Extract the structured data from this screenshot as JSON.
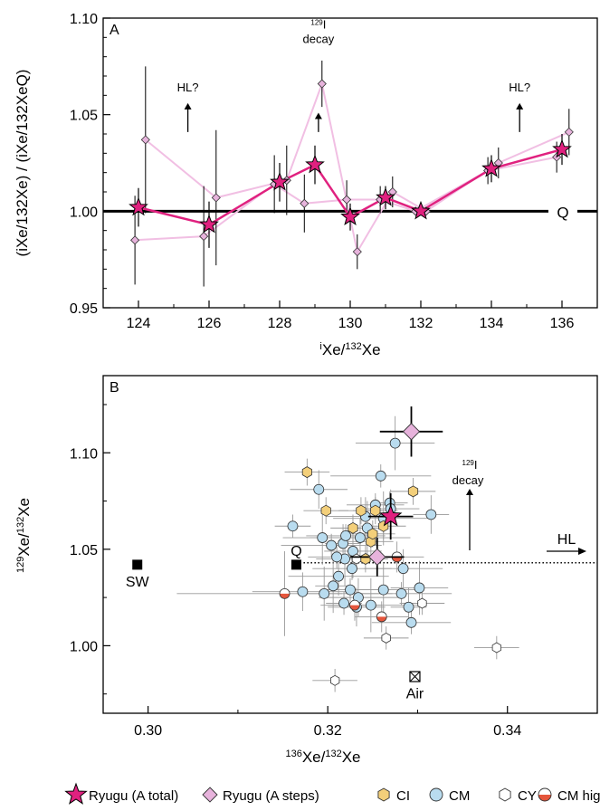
{
  "colors": {
    "ryugu_total": "#e0217f",
    "ryugu_steps_fill": "#e7b3dc",
    "ryugu_steps_line": "#f1bfe3",
    "ci": "#f3cf7a",
    "cm": "#b9dcef",
    "cy": "#ffffff",
    "cmht_top": "#ffffff",
    "cmht_bottom": "#e5563c",
    "error_gray": "#9a9a9a"
  },
  "chart_data": [
    {
      "panel": "A",
      "type": "line",
      "xlabel_pre": "i",
      "xlabel_main": "Xe/",
      "xlabel_sup": "132",
      "xlabel_post": "Xe",
      "ylabel_text": "(iXe/132Xe) / (iXe/132XeQ)",
      "xlim": [
        123,
        137
      ],
      "ylim": [
        0.95,
        1.1
      ],
      "xticks": [
        124,
        126,
        128,
        130,
        132,
        134,
        136
      ],
      "yticks": [
        0.95,
        1.0,
        1.05,
        1.1
      ],
      "ytick_labels": [
        "0.95",
        "1.00",
        "1.05",
        "1.10"
      ],
      "reference_line": {
        "y": 1.0,
        "label": "Q"
      },
      "series": [
        {
          "name": "Ryugu (A total)",
          "marker": "star",
          "points": [
            {
              "x": 124,
              "y": 1.002,
              "err": 0.01
            },
            {
              "x": 126,
              "y": 0.993,
              "err": 0.012
            },
            {
              "x": 128,
              "y": 1.015,
              "err": 0.01
            },
            {
              "x": 129,
              "y": 1.024,
              "err": 0.01
            },
            {
              "x": 130,
              "y": 0.997,
              "err": 0.007
            },
            {
              "x": 131,
              "y": 1.007,
              "err": 0.006
            },
            {
              "x": 132,
              "y": 1.0,
              "err": 0.002
            },
            {
              "x": 134,
              "y": 1.022,
              "err": 0.007
            },
            {
              "x": 136,
              "y": 1.032,
              "err": 0.008
            }
          ]
        },
        {
          "name": "Ryugu (A steps) step 1",
          "marker": "diamond",
          "points": [
            {
              "x": 123.9,
              "y": 0.985,
              "err": 0.023
            },
            {
              "x": 125.85,
              "y": 0.987,
              "err": 0.026
            },
            {
              "x": 127.85,
              "y": 1.014,
              "err": 0.015
            },
            {
              "x": 128.7,
              "y": 1.004,
              "err": 0.015
            },
            {
              "x": 129.9,
              "y": 1.006,
              "err": 0.01
            },
            {
              "x": 130.85,
              "y": 1.006,
              "err": 0.007
            },
            {
              "x": 131.85,
              "y": 1.0,
              "err": 0.002
            },
            {
              "x": 133.9,
              "y": 1.021,
              "err": 0.007
            },
            {
              "x": 135.85,
              "y": 1.028,
              "err": 0.008
            }
          ]
        },
        {
          "name": "Ryugu (A steps) step 2",
          "marker": "diamond",
          "points": [
            {
              "x": 124.2,
              "y": 1.037,
              "err": 0.038
            },
            {
              "x": 126.2,
              "y": 1.007,
              "err": 0.035
            },
            {
              "x": 128.2,
              "y": 1.016,
              "err": 0.018
            },
            {
              "x": 129.2,
              "y": 1.066,
              "err": 0.012
            },
            {
              "x": 130.2,
              "y": 0.979,
              "err": 0.009
            },
            {
              "x": 131.2,
              "y": 1.01,
              "err": 0.008
            },
            {
              "x": 132.15,
              "y": 1.0,
              "err": 0.002
            },
            {
              "x": 134.2,
              "y": 1.025,
              "err": 0.008
            },
            {
              "x": 136.2,
              "y": 1.041,
              "err": 0.012
            }
          ]
        }
      ],
      "annotations": [
        {
          "text": "HL?",
          "x": 125.4,
          "y": 1.062,
          "arrow": [
            1.041,
            1.056
          ]
        },
        {
          "text_pre": "129",
          "text": "I",
          "subtext": "decay",
          "x": 129.1,
          "y": 1.087,
          "arrow": [
            1.041,
            1.051
          ]
        },
        {
          "text": "HL?",
          "x": 134.8,
          "y": 1.062,
          "arrow": [
            1.041,
            1.056
          ]
        }
      ]
    },
    {
      "panel": "B",
      "type": "scatter",
      "xlabel_sup": "136",
      "xlabel_main": "Xe/",
      "xlabel_sup2": "132",
      "xlabel_post": "Xe",
      "ylabel_sup": "129",
      "ylabel_main": "Xe/",
      "ylabel_sup2": "132",
      "ylabel_post": "Xe",
      "xlim": [
        0.295,
        0.35
      ],
      "ylim": [
        0.965,
        1.14
      ],
      "xticks": [
        0.3,
        0.32,
        0.34
      ],
      "xtick_labels": [
        "0.30",
        "0.32",
        "0.34"
      ],
      "xminor": [
        0.31,
        0.33
      ],
      "yticks": [
        1.0,
        1.05,
        1.1
      ],
      "ytick_labels": [
        "1.00",
        "1.05",
        "1.10"
      ],
      "ryugu_total": {
        "x": 0.327,
        "y": 1.067,
        "ex": 0.0025,
        "ey": 0.012
      },
      "ryugu_steps": [
        {
          "x": 0.3293,
          "y": 1.111,
          "ex": 0.0035,
          "ey": 0.013
        },
        {
          "x": 0.3255,
          "y": 1.046,
          "ex": 0.003,
          "ey": 0.01
        }
      ],
      "ci": [
        {
          "x": 0.3177,
          "y": 1.09
        },
        {
          "x": 0.3228,
          "y": 1.061
        },
        {
          "x": 0.3237,
          "y": 1.07
        },
        {
          "x": 0.3253,
          "y": 1.07
        },
        {
          "x": 0.3262,
          "y": 1.062
        },
        {
          "x": 0.3248,
          "y": 1.054
        },
        {
          "x": 0.325,
          "y": 1.058
        },
        {
          "x": 0.3295,
          "y": 1.08
        },
        {
          "x": 0.3198,
          "y": 1.07
        },
        {
          "x": 0.3242,
          "y": 1.045
        }
      ],
      "cm": [
        {
          "x": 0.3161,
          "y": 1.062
        },
        {
          "x": 0.319,
          "y": 1.081
        },
        {
          "x": 0.3194,
          "y": 1.056
        },
        {
          "x": 0.3204,
          "y": 1.052
        },
        {
          "x": 0.3217,
          "y": 1.053
        },
        {
          "x": 0.3228,
          "y": 1.049
        },
        {
          "x": 0.322,
          "y": 1.057
        },
        {
          "x": 0.3236,
          "y": 1.056
        },
        {
          "x": 0.3244,
          "y": 1.061
        },
        {
          "x": 0.3253,
          "y": 1.073
        },
        {
          "x": 0.3242,
          "y": 1.067
        },
        {
          "x": 0.3262,
          "y": 1.066
        },
        {
          "x": 0.3269,
          "y": 1.074
        },
        {
          "x": 0.327,
          "y": 1.071
        },
        {
          "x": 0.3275,
          "y": 1.105
        },
        {
          "x": 0.3259,
          "y": 1.088
        },
        {
          "x": 0.3315,
          "y": 1.068
        },
        {
          "x": 0.3219,
          "y": 1.045
        },
        {
          "x": 0.3227,
          "y": 1.04
        },
        {
          "x": 0.3212,
          "y": 1.036
        },
        {
          "x": 0.3206,
          "y": 1.031
        },
        {
          "x": 0.3225,
          "y": 1.029
        },
        {
          "x": 0.3234,
          "y": 1.025
        },
        {
          "x": 0.3248,
          "y": 1.021
        },
        {
          "x": 0.3218,
          "y": 1.022
        },
        {
          "x": 0.3232,
          "y": 1.02
        },
        {
          "x": 0.3262,
          "y": 1.029
        },
        {
          "x": 0.3282,
          "y": 1.027
        },
        {
          "x": 0.329,
          "y": 1.02
        },
        {
          "x": 0.3302,
          "y": 1.03
        },
        {
          "x": 0.3293,
          "y": 1.012
        },
        {
          "x": 0.3172,
          "y": 1.028
        },
        {
          "x": 0.3196,
          "y": 1.027
        },
        {
          "x": 0.321,
          "y": 1.046
        },
        {
          "x": 0.3284,
          "y": 1.04
        }
      ],
      "cy": [
        {
          "x": 0.3208,
          "y": 0.982
        },
        {
          "x": 0.3265,
          "y": 1.004
        },
        {
          "x": 0.3305,
          "y": 1.022
        },
        {
          "x": 0.3388,
          "y": 0.999
        },
        {
          "x": 0.3232,
          "y": 1.045
        }
      ],
      "cm_high_t": [
        {
          "x": 0.3152,
          "y": 1.027
        },
        {
          "x": 0.323,
          "y": 1.021
        },
        {
          "x": 0.326,
          "y": 1.015
        },
        {
          "x": 0.3277,
          "y": 1.046
        }
      ],
      "endmembers": [
        {
          "label": "SW",
          "x": 0.2988,
          "y": 1.042,
          "marker": "square-filled"
        },
        {
          "label": "Q",
          "x": 0.3165,
          "y": 1.042,
          "marker": "square-filled"
        },
        {
          "label": "Air",
          "x": 0.3297,
          "y": 0.984,
          "marker": "square-cross"
        }
      ],
      "hl_line": {
        "x_start": 0.3165,
        "y": 1.043,
        "label": "HL"
      },
      "annotation": {
        "text_pre": "129",
        "text": "I",
        "subtext": "decay",
        "x": 0.3355,
        "y": 1.085
      }
    }
  ],
  "legend": [
    {
      "label": "Ryugu (A total)",
      "marker": "star"
    },
    {
      "label": "Ryugu (A steps)",
      "marker": "diamond"
    },
    {
      "label": "CI",
      "marker": "hexagon-ci"
    },
    {
      "label": "CM",
      "marker": "circle-cm"
    },
    {
      "label": "CY",
      "marker": "hexagon-cy"
    },
    {
      "label": "CM high T",
      "marker": "circle-cmht"
    }
  ]
}
